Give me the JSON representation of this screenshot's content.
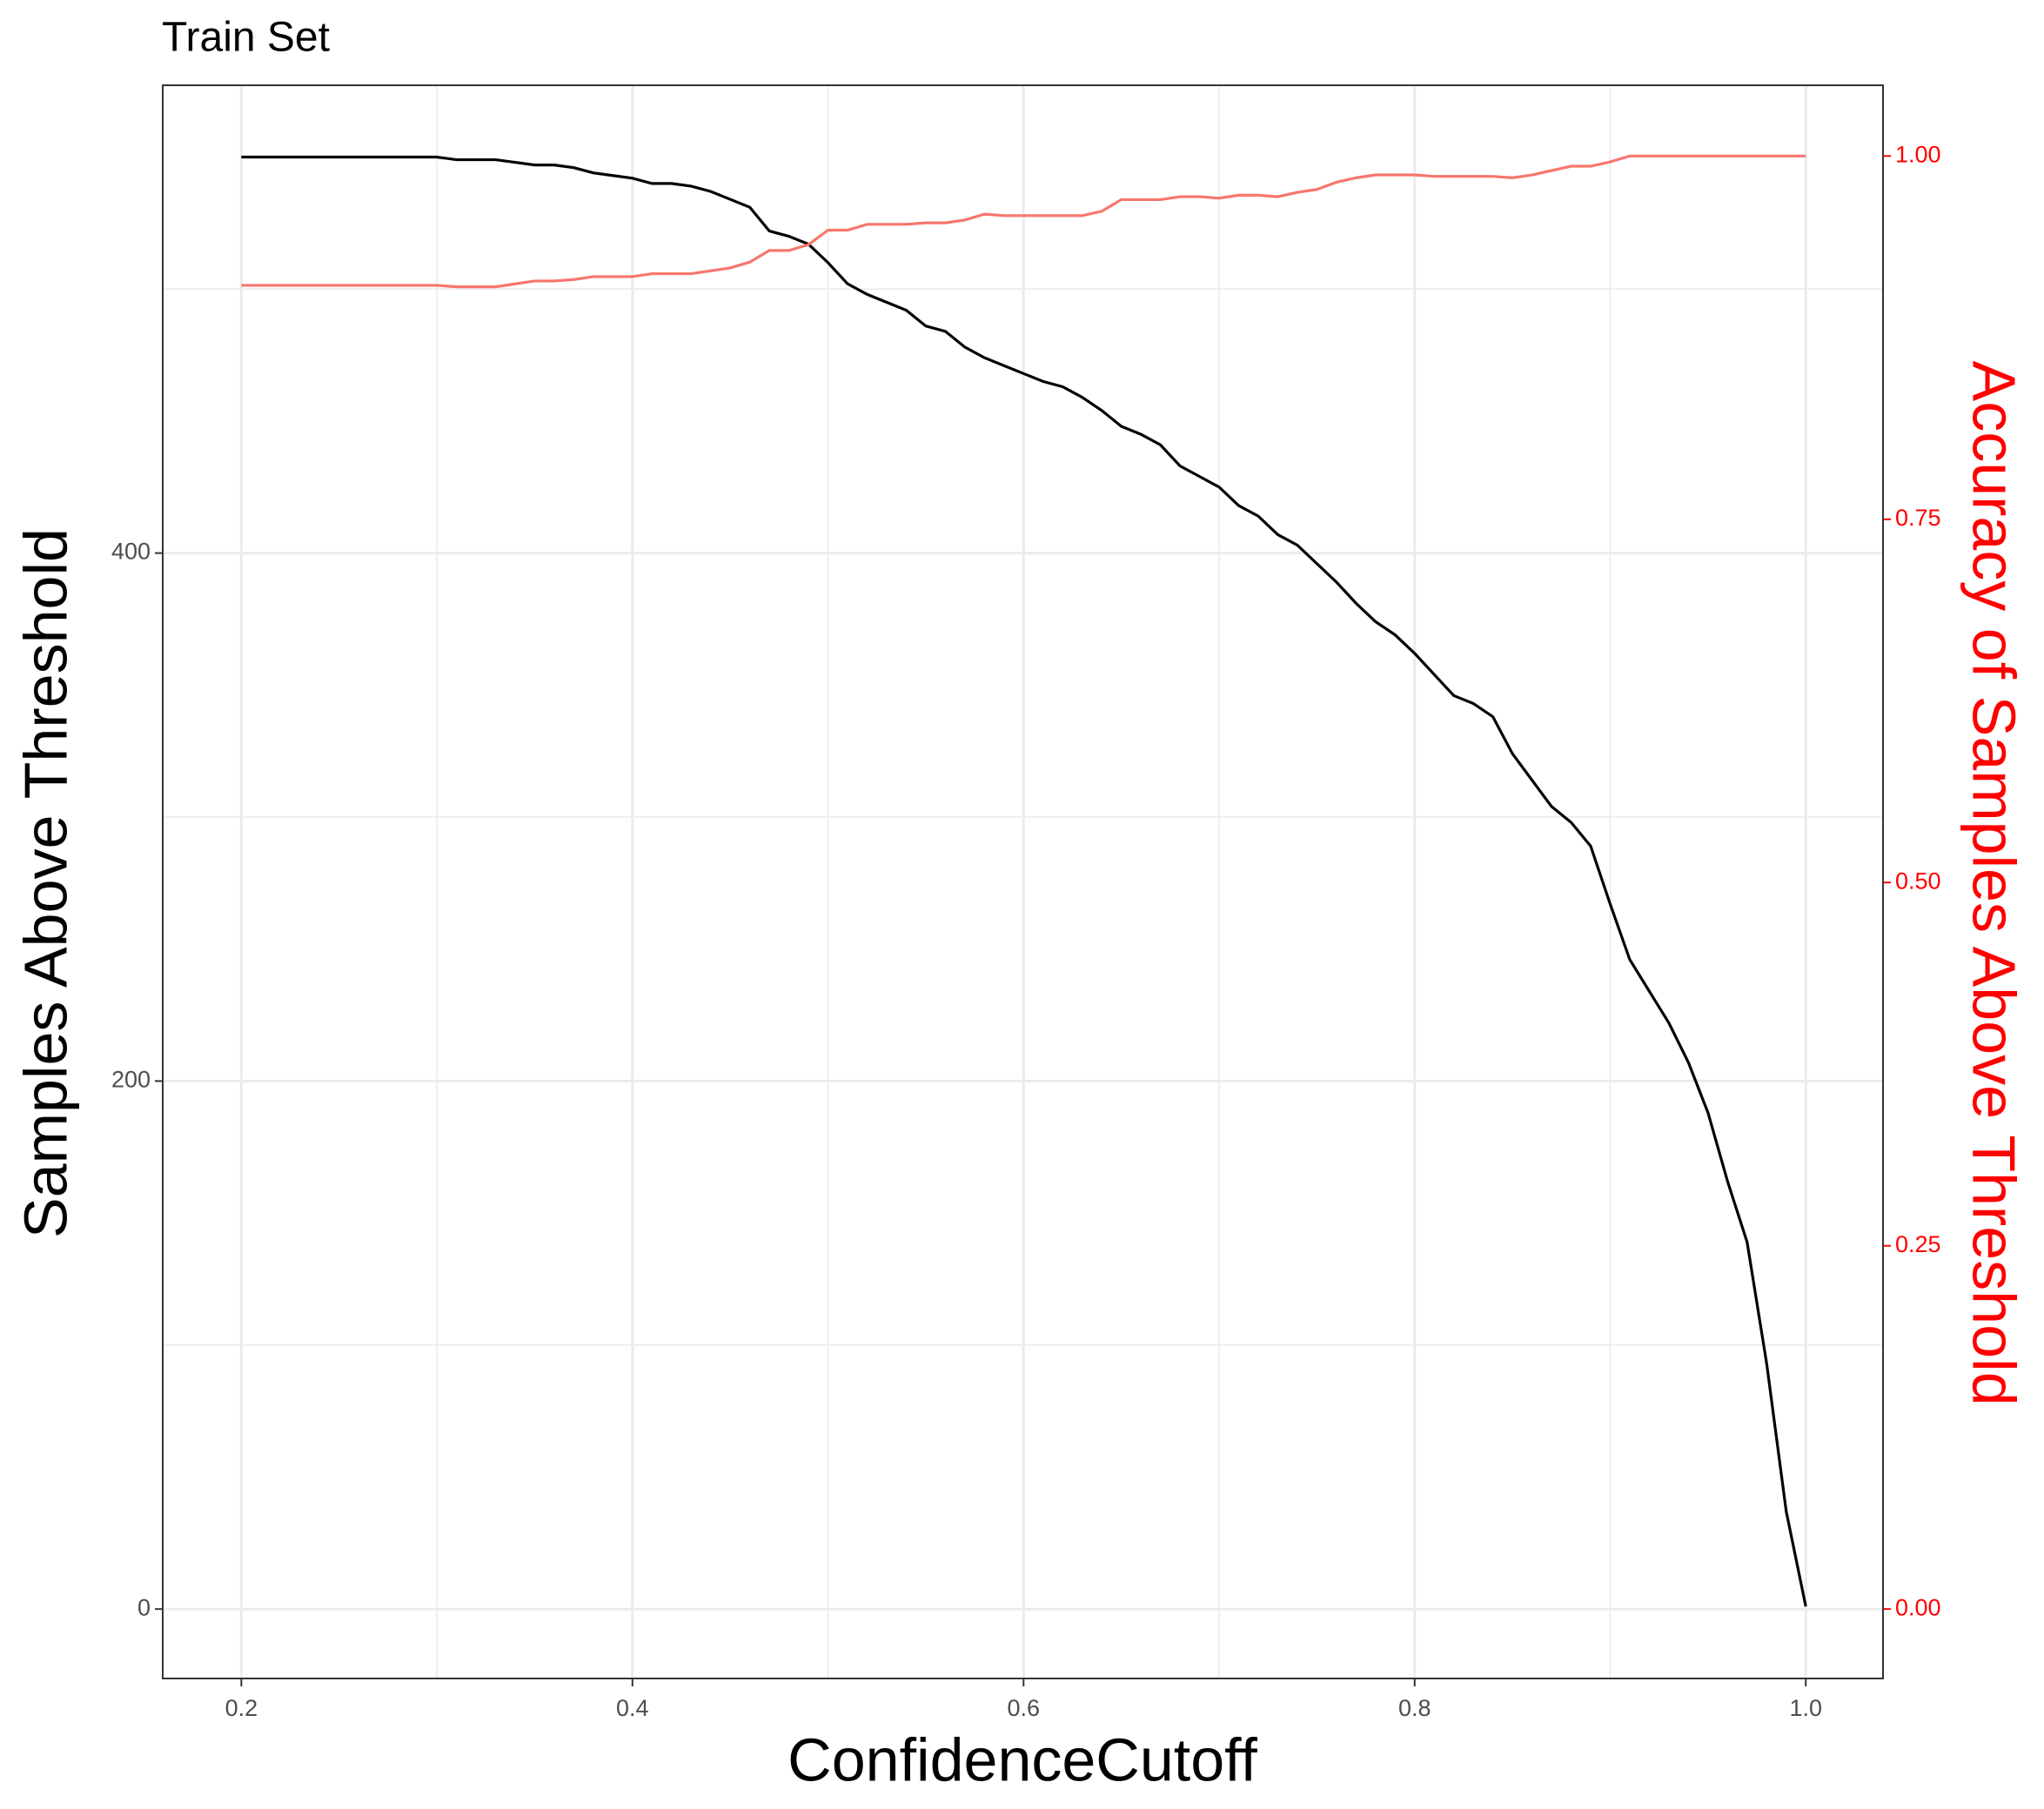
{
  "chart_data": {
    "type": "line",
    "title": "Train Set",
    "x_label": "ConfidenceCutoff",
    "y_label": "Samples Above Threshold",
    "y2_label": "Accuracy of Samples Above Threshold",
    "y2_color": "#FF0000",
    "x": [
      0.2,
      0.21,
      0.22,
      0.23,
      0.24,
      0.25,
      0.26,
      0.27,
      0.28,
      0.29,
      0.3,
      0.31,
      0.32,
      0.33,
      0.34,
      0.35,
      0.36,
      0.37,
      0.38,
      0.39,
      0.4,
      0.41,
      0.42,
      0.43,
      0.44,
      0.45,
      0.46,
      0.47,
      0.48,
      0.49,
      0.5,
      0.51,
      0.52,
      0.53,
      0.54,
      0.55,
      0.56,
      0.57,
      0.58,
      0.59,
      0.6,
      0.61,
      0.62,
      0.63,
      0.64,
      0.65,
      0.66,
      0.67,
      0.68,
      0.69,
      0.7,
      0.71,
      0.72,
      0.73,
      0.74,
      0.75,
      0.76,
      0.77,
      0.78,
      0.79,
      0.8,
      0.81,
      0.82,
      0.83,
      0.84,
      0.85,
      0.86,
      0.87,
      0.88,
      0.89,
      0.9,
      0.91,
      0.92,
      0.93,
      0.94,
      0.95,
      0.96,
      0.97,
      0.98,
      0.99,
      1.0
    ],
    "series": [
      {
        "name": "Samples Above Threshold",
        "color": "#000000",
        "axis": "y",
        "values": [
          550,
          550,
          550,
          550,
          550,
          550,
          550,
          550,
          550,
          550,
          550,
          549,
          549,
          549,
          548,
          547,
          547,
          546,
          544,
          543,
          542,
          540,
          540,
          539,
          537,
          534,
          531,
          522,
          520,
          517,
          510,
          502,
          498,
          495,
          492,
          486,
          484,
          478,
          474,
          471,
          468,
          465,
          463,
          459,
          454,
          448,
          445,
          441,
          433,
          429,
          425,
          418,
          414,
          407,
          403,
          396,
          389,
          381,
          374,
          369,
          362,
          354,
          346,
          343,
          338,
          324,
          314,
          304,
          298,
          289,
          267,
          246,
          234,
          222,
          207,
          188,
          162,
          139,
          93,
          37,
          1
        ]
      },
      {
        "name": "Accuracy of Samples Above Threshold",
        "color": "#F8766D",
        "axis": "y2",
        "values": [
          0.911,
          0.911,
          0.911,
          0.911,
          0.911,
          0.911,
          0.911,
          0.911,
          0.911,
          0.911,
          0.911,
          0.91,
          0.91,
          0.91,
          0.912,
          0.914,
          0.914,
          0.915,
          0.917,
          0.917,
          0.917,
          0.919,
          0.919,
          0.919,
          0.921,
          0.923,
          0.927,
          0.935,
          0.935,
          0.939,
          0.949,
          0.949,
          0.953,
          0.953,
          0.953,
          0.954,
          0.954,
          0.956,
          0.96,
          0.959,
          0.959,
          0.959,
          0.959,
          0.959,
          0.962,
          0.97,
          0.97,
          0.97,
          0.972,
          0.972,
          0.971,
          0.973,
          0.973,
          0.972,
          0.975,
          0.977,
          0.982,
          0.985,
          0.987,
          0.987,
          0.987,
          0.986,
          0.986,
          0.986,
          0.986,
          0.985,
          0.987,
          0.99,
          0.993,
          0.993,
          0.996,
          1,
          1,
          1,
          1,
          1,
          1,
          1,
          1,
          1,
          1
        ]
      }
    ],
    "xlim": [
      0.1598,
      1.0395
    ],
    "xticks": [
      0.2,
      0.4,
      0.6,
      0.8,
      {
        "value": 1,
        "label": "1.0"
      }
    ],
    "x_minor_grid": [
      0.3,
      0.5,
      0.7,
      0.9
    ],
    "ylim": [
      -26.3,
      577.2
    ],
    "yticks": [
      0,
      200,
      400
    ],
    "y_minor_grid": [
      100,
      300,
      500
    ],
    "y2lim": [
      -0.0478,
      1.0487
    ],
    "y2ticks": [
      {
        "value": 0,
        "label": "0.00"
      },
      {
        "value": 0.25,
        "label": "0.25"
      },
      {
        "value": 0.5,
        "label": "0.50"
      },
      {
        "value": 0.75,
        "label": "0.75"
      },
      {
        "value": 1,
        "label": "1.00"
      }
    ],
    "grid": true
  }
}
